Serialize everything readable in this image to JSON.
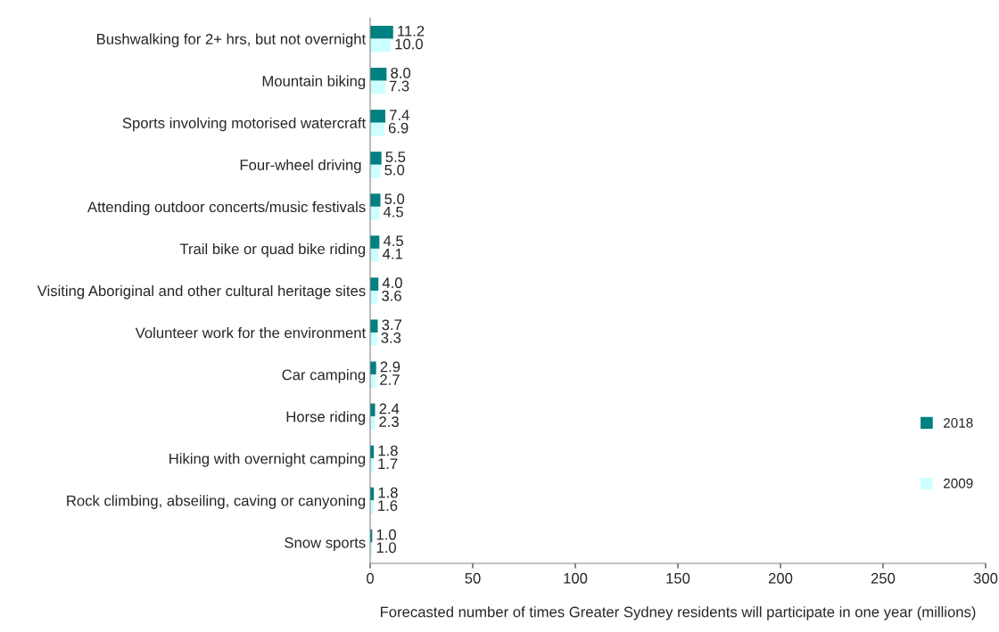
{
  "chart_data": {
    "type": "bar",
    "orientation": "horizontal",
    "categories": [
      "Bushwalking for 2+ hrs, but not overnight",
      "Mountain biking",
      "Sports involving motorised watercraft",
      "Four-wheel driving ",
      "Attending outdoor concerts/music festivals",
      "Trail bike or quad bike riding",
      "Visiting Aboriginal and other cultural heritage sites",
      "Volunteer work for the environment",
      "Car camping",
      "Horse riding",
      "Hiking with overnight camping",
      "Rock climbing, abseiling, caving or canyoning",
      "Snow sports"
    ],
    "series": [
      {
        "name": "2018",
        "color": "#008080",
        "values": [
          11.2,
          8.0,
          7.4,
          5.5,
          5.0,
          4.5,
          4.0,
          3.7,
          2.9,
          2.4,
          1.8,
          1.8,
          1.0
        ],
        "value_labels": [
          "11.2",
          "8.0",
          "7.4",
          "5.5",
          "5.0",
          "4.5",
          "4.0",
          "3.7",
          "2.9",
          "2.4",
          "1.8",
          "1.8",
          "1.0"
        ]
      },
      {
        "name": "2009",
        "color": "#ccffff",
        "values": [
          10.0,
          7.3,
          6.9,
          5.0,
          4.5,
          4.1,
          3.6,
          3.3,
          2.7,
          2.3,
          1.7,
          1.6,
          1.0
        ],
        "value_labels": [
          "10.0",
          "7.3",
          "6.9",
          "5.0",
          "4.5",
          "4.1",
          "3.6",
          "3.3",
          "2.7",
          "2.3",
          "1.7",
          "1.6",
          "1.0"
        ]
      }
    ],
    "xlim": [
      0,
      300
    ],
    "xticks": [
      0,
      50,
      100,
      150,
      200,
      250,
      300
    ],
    "xlabel": "Forecasted number of times Greater Sydney residents will participate in one year (millions)",
    "legend": "right",
    "grid": false
  }
}
